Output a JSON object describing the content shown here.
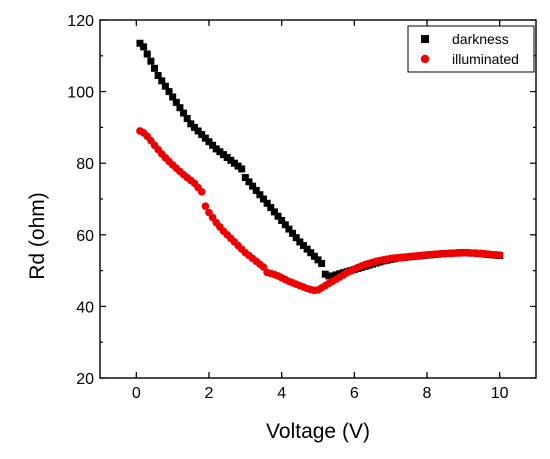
{
  "chart_data": {
    "type": "scatter",
    "title": "",
    "xlabel": "Voltage (V)",
    "ylabel": "Rd (ohm)",
    "xlim": [
      -1,
      11
    ],
    "ylim": [
      20,
      120
    ],
    "x_ticks": [
      0,
      2,
      4,
      6,
      8,
      10
    ],
    "y_ticks": [
      20,
      40,
      60,
      80,
      100,
      120
    ],
    "x_tick_labels": [
      "0",
      "2",
      "4",
      "6",
      "8",
      "10"
    ],
    "y_tick_labels": [
      "20",
      "40",
      "60",
      "80",
      "100",
      "120"
    ],
    "grid": false,
    "legend_position": "top-right",
    "series": [
      {
        "name": "darkness",
        "marker": "square",
        "color": "#000000",
        "points": [
          [
            0.1,
            113.5
          ],
          [
            0.2,
            112.5
          ],
          [
            0.3,
            110.5
          ],
          [
            0.4,
            108.5
          ],
          [
            0.5,
            106.5
          ],
          [
            0.6,
            104.5
          ],
          [
            0.7,
            103
          ],
          [
            0.8,
            101.5
          ],
          [
            0.9,
            100
          ],
          [
            1.0,
            98.5
          ],
          [
            1.1,
            97
          ],
          [
            1.2,
            95.5
          ],
          [
            1.3,
            94
          ],
          [
            1.4,
            92.5
          ],
          [
            1.5,
            91
          ],
          [
            1.6,
            90
          ],
          [
            1.7,
            89
          ],
          [
            1.8,
            88
          ],
          [
            1.9,
            87
          ],
          [
            2.0,
            86
          ],
          [
            2.1,
            85
          ],
          [
            2.2,
            84
          ],
          [
            2.3,
            83.2
          ],
          [
            2.4,
            82.4
          ],
          [
            2.5,
            81.6
          ],
          [
            2.6,
            80.8
          ],
          [
            2.7,
            80
          ],
          [
            2.8,
            79.2
          ],
          [
            2.9,
            78.4
          ],
          [
            3.0,
            76
          ],
          [
            3.1,
            74.8
          ],
          [
            3.2,
            73.6
          ],
          [
            3.3,
            72.4
          ],
          [
            3.4,
            71.2
          ],
          [
            3.5,
            70
          ],
          [
            3.6,
            68.8
          ],
          [
            3.7,
            67.6
          ],
          [
            3.8,
            66.4
          ],
          [
            3.9,
            65.2
          ],
          [
            4.0,
            64
          ],
          [
            4.1,
            62.8
          ],
          [
            4.2,
            61.6
          ],
          [
            4.3,
            60.4
          ],
          [
            4.4,
            59.2
          ],
          [
            4.5,
            58
          ],
          [
            4.6,
            57
          ],
          [
            4.7,
            56
          ],
          [
            4.8,
            55
          ],
          [
            4.9,
            54
          ],
          [
            5.0,
            53
          ],
          [
            5.1,
            52
          ],
          [
            5.2,
            49
          ],
          [
            5.3,
            48.5
          ],
          [
            5.4,
            48.5
          ],
          [
            5.5,
            48.8
          ],
          [
            5.6,
            49.1
          ],
          [
            5.7,
            49.4
          ],
          [
            5.8,
            49.7
          ],
          [
            5.9,
            50
          ],
          [
            6.0,
            50.3
          ],
          [
            6.1,
            50.6
          ],
          [
            6.2,
            50.9
          ],
          [
            6.3,
            51.2
          ],
          [
            6.4,
            51.5
          ],
          [
            6.5,
            51.8
          ],
          [
            6.6,
            52.1
          ],
          [
            6.7,
            52.4
          ],
          [
            6.8,
            52.7
          ],
          [
            6.9,
            52.9
          ],
          [
            7.0,
            53.1
          ],
          [
            7.1,
            53.3
          ],
          [
            7.2,
            53.5
          ],
          [
            7.3,
            53.6
          ],
          [
            7.4,
            53.7
          ],
          [
            7.5,
            53.8
          ],
          [
            7.6,
            53.9
          ],
          [
            7.7,
            54
          ],
          [
            7.8,
            54.1
          ],
          [
            7.9,
            54.2
          ],
          [
            8.0,
            54.3
          ],
          [
            8.1,
            54.4
          ],
          [
            8.2,
            54.5
          ],
          [
            8.3,
            54.6
          ],
          [
            8.4,
            54.7
          ],
          [
            8.5,
            54.8
          ],
          [
            8.6,
            54.8
          ],
          [
            8.7,
            54.9
          ],
          [
            8.8,
            54.9
          ],
          [
            8.9,
            55
          ],
          [
            9.0,
            55
          ],
          [
            9.1,
            55
          ],
          [
            9.2,
            54.9
          ],
          [
            9.3,
            54.9
          ],
          [
            9.4,
            54.8
          ],
          [
            9.5,
            54.7
          ],
          [
            9.6,
            54.6
          ],
          [
            9.7,
            54.5
          ],
          [
            9.8,
            54.4
          ],
          [
            9.9,
            54.3
          ],
          [
            10.0,
            54.2
          ]
        ]
      },
      {
        "name": "illuminated",
        "marker": "circle",
        "color": "#ee0000",
        "points": [
          [
            0.1,
            89
          ],
          [
            0.2,
            88.5
          ],
          [
            0.3,
            87.5
          ],
          [
            0.4,
            86.3
          ],
          [
            0.5,
            85
          ],
          [
            0.6,
            83.8
          ],
          [
            0.7,
            82.6
          ],
          [
            0.8,
            81.5
          ],
          [
            0.9,
            80.5
          ],
          [
            1.0,
            79.5
          ],
          [
            1.1,
            78.6
          ],
          [
            1.2,
            77.7
          ],
          [
            1.3,
            76.8
          ],
          [
            1.4,
            76
          ],
          [
            1.5,
            75.2
          ],
          [
            1.6,
            74.4
          ],
          [
            1.7,
            73.2
          ],
          [
            1.8,
            72
          ],
          [
            1.9,
            68
          ],
          [
            2.0,
            66.2
          ],
          [
            2.1,
            64.8
          ],
          [
            2.2,
            63.4
          ],
          [
            2.3,
            62.2
          ],
          [
            2.4,
            61
          ],
          [
            2.5,
            60
          ],
          [
            2.6,
            59
          ],
          [
            2.7,
            58
          ],
          [
            2.8,
            57
          ],
          [
            2.9,
            56
          ],
          [
            3.0,
            55
          ],
          [
            3.1,
            54.2
          ],
          [
            3.2,
            53.4
          ],
          [
            3.3,
            52.6
          ],
          [
            3.4,
            51.8
          ],
          [
            3.5,
            51
          ],
          [
            3.6,
            49.5
          ],
          [
            3.7,
            49.2
          ],
          [
            3.8,
            48.9
          ],
          [
            3.9,
            48.5
          ],
          [
            4.0,
            48
          ],
          [
            4.1,
            47.5
          ],
          [
            4.2,
            47
          ],
          [
            4.3,
            46.6
          ],
          [
            4.4,
            46.2
          ],
          [
            4.5,
            45.8
          ],
          [
            4.6,
            45.4
          ],
          [
            4.7,
            45
          ],
          [
            4.8,
            44.7
          ],
          [
            4.9,
            44.5
          ],
          [
            5.0,
            44.6
          ],
          [
            5.1,
            45.2
          ],
          [
            5.2,
            45.8
          ],
          [
            5.3,
            46.4
          ],
          [
            5.4,
            47
          ],
          [
            5.5,
            47.6
          ],
          [
            5.6,
            48.2
          ],
          [
            5.7,
            48.8
          ],
          [
            5.8,
            49.4
          ],
          [
            5.9,
            49.9
          ],
          [
            6.0,
            50.4
          ],
          [
            6.1,
            50.9
          ],
          [
            6.2,
            51.3
          ],
          [
            6.3,
            51.7
          ],
          [
            6.4,
            52
          ],
          [
            6.5,
            52.3
          ],
          [
            6.6,
            52.6
          ],
          [
            6.7,
            52.8
          ],
          [
            6.8,
            53
          ],
          [
            6.9,
            53.2
          ],
          [
            7.0,
            53.4
          ],
          [
            7.1,
            53.5
          ],
          [
            7.2,
            53.6
          ],
          [
            7.3,
            53.7
          ],
          [
            7.4,
            53.8
          ],
          [
            7.5,
            53.9
          ],
          [
            7.6,
            54
          ],
          [
            7.7,
            54.1
          ],
          [
            7.8,
            54.2
          ],
          [
            7.9,
            54.3
          ],
          [
            8.0,
            54.4
          ],
          [
            8.1,
            54.5
          ],
          [
            8.2,
            54.6
          ],
          [
            8.3,
            54.6
          ],
          [
            8.4,
            54.7
          ],
          [
            8.5,
            54.7
          ],
          [
            8.6,
            54.8
          ],
          [
            8.7,
            54.8
          ],
          [
            8.8,
            54.9
          ],
          [
            8.9,
            54.9
          ],
          [
            9.0,
            55
          ],
          [
            9.1,
            55
          ],
          [
            9.2,
            54.9
          ],
          [
            9.3,
            54.9
          ],
          [
            9.4,
            54.8
          ],
          [
            9.5,
            54.8
          ],
          [
            9.6,
            54.7
          ],
          [
            9.7,
            54.6
          ],
          [
            9.8,
            54.5
          ],
          [
            9.9,
            54.4
          ],
          [
            10.0,
            54.3
          ]
        ]
      }
    ]
  }
}
